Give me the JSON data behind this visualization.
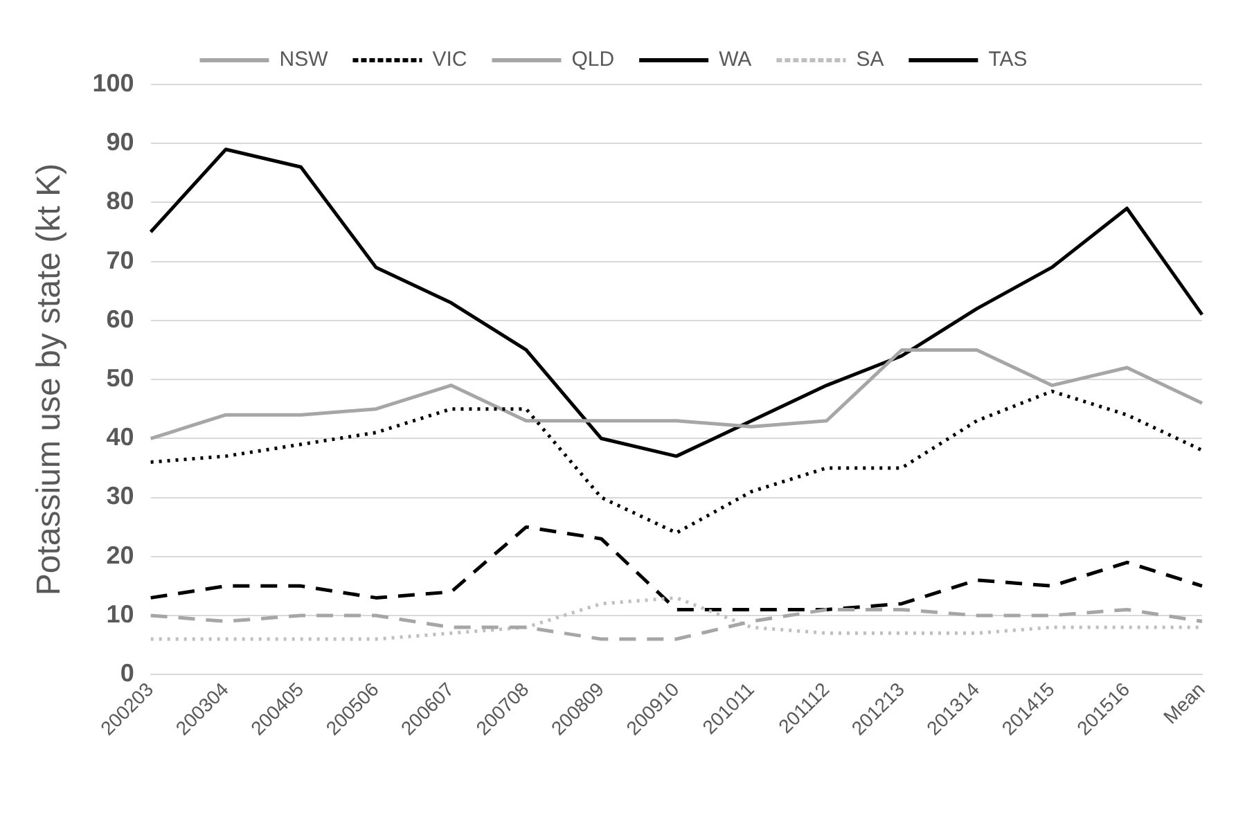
{
  "chart_data": {
    "type": "line",
    "ylabel": "Potassium use by state (kt K)",
    "categories": [
      "200203",
      "200304",
      "200405",
      "200506",
      "200607",
      "200708",
      "200809",
      "200910",
      "201011",
      "201112",
      "201213",
      "201314",
      "201415",
      "201516",
      "Mean"
    ],
    "series": [
      {
        "name": "NSW",
        "color": "#a6a6a6",
        "line_style": "dashed",
        "values": [
          10,
          9,
          10,
          10,
          8,
          8,
          6,
          6,
          9,
          11,
          11,
          10,
          10,
          11,
          9
        ]
      },
      {
        "name": "VIC",
        "color": "#000000",
        "line_style": "dotted",
        "values": [
          36,
          37,
          39,
          41,
          45,
          45,
          30,
          24,
          31,
          35,
          35,
          43,
          48,
          44,
          38
        ]
      },
      {
        "name": "QLD",
        "color": "#a6a6a6",
        "line_style": "solid",
        "values": [
          40,
          44,
          44,
          45,
          49,
          43,
          43,
          43,
          42,
          43,
          55,
          55,
          49,
          52,
          46
        ]
      },
      {
        "name": "WA",
        "color": "#000000",
        "line_style": "solid",
        "values": [
          75,
          89,
          86,
          69,
          63,
          55,
          40,
          37,
          43,
          49,
          54,
          62,
          69,
          79,
          61
        ]
      },
      {
        "name": "SA",
        "color": "#bfbfbf",
        "line_style": "dotted",
        "values": [
          6,
          6,
          6,
          6,
          7,
          8,
          12,
          13,
          8,
          7,
          7,
          7,
          8,
          8,
          8
        ]
      },
      {
        "name": "TAS",
        "color": "#000000",
        "line_style": "dashed",
        "values": [
          13,
          15,
          15,
          13,
          14,
          25,
          23,
          11,
          11,
          11,
          12,
          16,
          15,
          19,
          15
        ]
      }
    ],
    "ylim": [
      0,
      100
    ],
    "yticks": [
      0,
      10,
      20,
      30,
      40,
      50,
      60,
      70,
      80,
      90,
      100
    ],
    "grid": "y",
    "legend": "top",
    "marker": "none"
  }
}
